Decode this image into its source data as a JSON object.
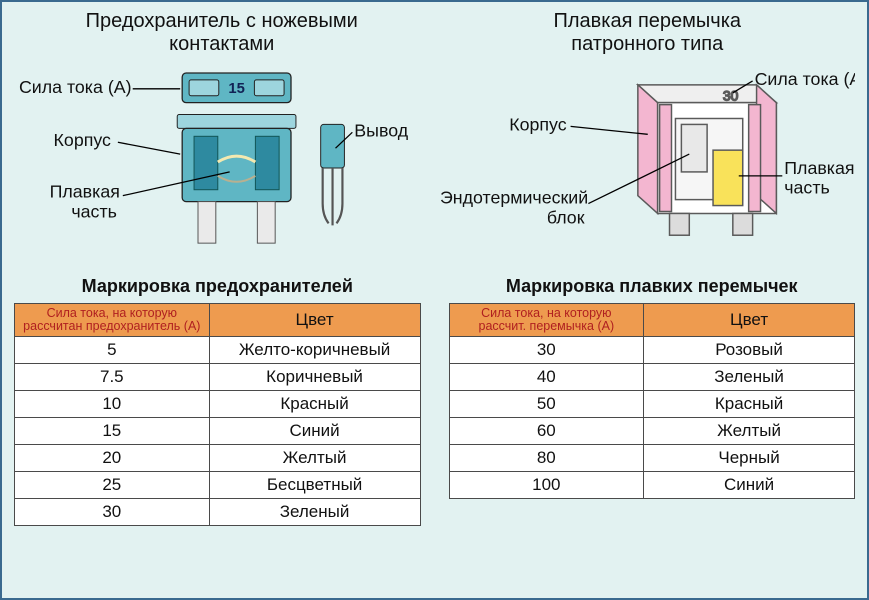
{
  "colors": {
    "frame_border": "#3a6a8f",
    "background": "#e2f2f1",
    "table_header_bg": "#ee9b4f",
    "table_border": "#4a4a4a",
    "th_col1_text": "#b02020",
    "fuse_body": "#5fb6c4",
    "fuse_body_dark": "#2e8aa0",
    "fuse_top": "#9dd5de",
    "blade_grey": "#cfcfcf",
    "blade_stroke": "#555555",
    "cartridge_pink": "#f3b6d0",
    "cartridge_yellow": "#f9e25a",
    "cartridge_stroke": "#5a5a5a"
  },
  "typography": {
    "title_fontsize": 20,
    "label_fontsize": 18,
    "table_title_fontsize": 18,
    "th_col1_fontsize": 12.5,
    "cell_fontsize": 17
  },
  "left": {
    "title_line1": "Предохранитель с ножевыми",
    "title_line2": "контактами",
    "labels": {
      "amperage": "Сила тока (А)",
      "housing": "Корпус",
      "fusible_part1": "Плавкая",
      "fusible_part2": "часть",
      "terminal": "Вывод"
    },
    "amp_text": "15"
  },
  "right": {
    "title_line1": "Плавкая перемычка",
    "title_line2": "патронного типа",
    "labels": {
      "amperage": "Сила тока (А)",
      "housing": "Корпус",
      "endothermic1": "Эндотермический",
      "endothermic2": "блок",
      "fusible_part1": "Плавкая",
      "fusible_part2": "часть"
    },
    "amp_text": "30"
  },
  "table_left": {
    "title": "Маркировка предохранителей",
    "col1_line1": "Сила тока, на которую",
    "col1_line2": "рассчитан предохранитель (А)",
    "col2": "Цвет",
    "rows": [
      {
        "a": "5",
        "c": "Желто-коричневый"
      },
      {
        "a": "7.5",
        "c": "Коричневый"
      },
      {
        "a": "10",
        "c": "Красный"
      },
      {
        "a": "15",
        "c": "Синий"
      },
      {
        "a": "20",
        "c": "Желтый"
      },
      {
        "a": "25",
        "c": "Бесцветный"
      },
      {
        "a": "30",
        "c": "Зеленый"
      }
    ]
  },
  "table_right": {
    "title": "Маркировка плавких перемычек",
    "col1_line1": "Сила тока, на которую",
    "col1_line2": "рассчит. перемычка (А)",
    "col2": "Цвет",
    "rows": [
      {
        "a": "30",
        "c": "Розовый"
      },
      {
        "a": "40",
        "c": "Зеленый"
      },
      {
        "a": "50",
        "c": "Красный"
      },
      {
        "a": "60",
        "c": "Желтый"
      },
      {
        "a": "80",
        "c": "Черный"
      },
      {
        "a": "100",
        "c": "Синий"
      }
    ]
  }
}
